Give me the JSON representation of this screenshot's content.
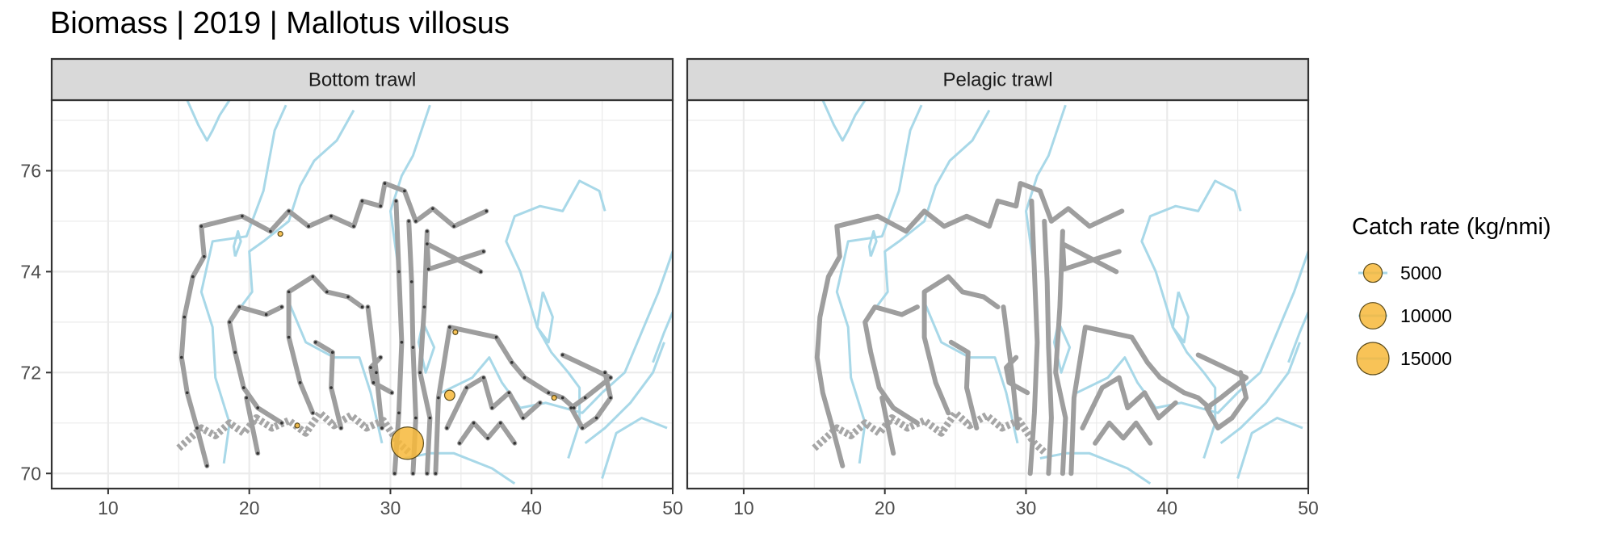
{
  "title": "Biomass | 2019 | Mallotus villosus",
  "chart_data": {
    "type": "scatter",
    "xlim": [
      6,
      50
    ],
    "ylim": [
      69.7,
      77.4
    ],
    "x_ticks": [
      10,
      20,
      30,
      40,
      50
    ],
    "y_ticks": [
      70,
      72,
      74,
      76
    ],
    "x_tick_labels": [
      "10",
      "20",
      "30",
      "40",
      "50"
    ],
    "y_tick_labels": [
      "70",
      "72",
      "74",
      "76"
    ],
    "grid": true,
    "legend_position": "right",
    "colors": {
      "point_fill": "#f7b83a",
      "point_edge": "#5a4a1a",
      "track": "#9e9e9e",
      "depth_contour": "#a8d8e8",
      "strip_bg": "#d9d9d9",
      "grid": "#ebebeb"
    },
    "panels": [
      {
        "name": "Bottom trawl",
        "points": [
          {
            "x": 31.2,
            "y": 70.6,
            "value": 15000
          },
          {
            "x": 34.2,
            "y": 71.55,
            "value": 1500
          },
          {
            "x": 41.6,
            "y": 71.5,
            "value": 300
          },
          {
            "x": 23.4,
            "y": 70.95,
            "value": 200
          },
          {
            "x": 22.2,
            "y": 74.75,
            "value": 60
          },
          {
            "x": 34.6,
            "y": 72.8,
            "value": 40
          }
        ]
      },
      {
        "name": "Pelagic trawl",
        "points": []
      }
    ],
    "legend": {
      "title": "Catch rate (kg/nmi)",
      "entries": [
        {
          "label": "5000",
          "value": 5000
        },
        {
          "label": "10000",
          "value": 10000
        },
        {
          "label": "15000",
          "value": 15000
        }
      ]
    },
    "survey_track": [
      [
        [
          17.0,
          70.15
        ],
        [
          16.3,
          70.9
        ],
        [
          15.6,
          71.6
        ],
        [
          15.2,
          72.3
        ],
        [
          15.4,
          73.1
        ],
        [
          16.0,
          73.9
        ],
        [
          16.8,
          74.3
        ],
        [
          16.6,
          74.9
        ],
        [
          19.5,
          75.1
        ],
        [
          21.5,
          74.8
        ],
        [
          22.8,
          75.2
        ],
        [
          24.2,
          74.9
        ],
        [
          25.8,
          75.1
        ],
        [
          27.4,
          74.9
        ],
        [
          28.0,
          75.4
        ],
        [
          29.3,
          75.3
        ],
        [
          29.6,
          75.75
        ],
        [
          31.0,
          75.6
        ],
        [
          31.8,
          75.0
        ],
        [
          33.0,
          75.25
        ],
        [
          34.5,
          74.9
        ],
        [
          36.8,
          75.2
        ]
      ],
      [
        [
          36.4,
          74.0
        ],
        [
          32.6,
          74.55
        ],
        [
          32.7,
          74.05
        ],
        [
          36.6,
          74.4
        ]
      ],
      [
        [
          22.3,
          71.0
        ],
        [
          20.6,
          71.3
        ],
        [
          19.6,
          71.7
        ],
        [
          19.0,
          72.4
        ],
        [
          18.6,
          73.0
        ],
        [
          19.3,
          73.3
        ],
        [
          21.2,
          73.15
        ],
        [
          22.3,
          73.3
        ]
      ],
      [
        [
          20.6,
          70.4
        ],
        [
          19.8,
          71.5
        ]
      ],
      [
        [
          24.5,
          71.2
        ],
        [
          23.6,
          71.8
        ],
        [
          22.8,
          72.7
        ],
        [
          22.8,
          73.6
        ],
        [
          24.5,
          73.9
        ],
        [
          25.5,
          73.6
        ],
        [
          27.0,
          73.5
        ],
        [
          28.0,
          73.3
        ]
      ],
      [
        [
          26.5,
          70.9
        ],
        [
          25.8,
          71.7
        ],
        [
          25.9,
          72.4
        ],
        [
          24.7,
          72.6
        ]
      ],
      [
        [
          29.4,
          70.9
        ],
        [
          29.0,
          72.0
        ],
        [
          28.4,
          73.3
        ]
      ],
      [
        [
          30.4,
          75.4
        ],
        [
          30.6,
          74.0
        ],
        [
          30.8,
          72.6
        ],
        [
          30.6,
          71.2
        ],
        [
          30.3,
          70.0
        ]
      ],
      [
        [
          31.3,
          75.0
        ],
        [
          31.5,
          73.8
        ],
        [
          31.6,
          72.5
        ],
        [
          31.8,
          71.1
        ],
        [
          31.6,
          70.0
        ]
      ],
      [
        [
          32.6,
          74.8
        ],
        [
          32.4,
          73.3
        ],
        [
          32.1,
          72.0
        ],
        [
          32.8,
          71.1
        ],
        [
          32.6,
          70.0
        ]
      ],
      [
        [
          33.2,
          70.0
        ],
        [
          33.4,
          71.5
        ],
        [
          34.2,
          72.9
        ],
        [
          37.5,
          72.7
        ],
        [
          38.6,
          72.2
        ],
        [
          39.5,
          71.9
        ],
        [
          41.2,
          71.6
        ],
        [
          42.2,
          71.5
        ],
        [
          43.0,
          71.3
        ]
      ],
      [
        [
          34.0,
          70.9
        ],
        [
          35.4,
          71.7
        ],
        [
          36.6,
          71.9
        ],
        [
          37.2,
          71.3
        ],
        [
          38.4,
          71.6
        ],
        [
          39.4,
          71.1
        ],
        [
          40.6,
          71.4
        ]
      ],
      [
        [
          30.1,
          71.6
        ],
        [
          28.8,
          71.8
        ],
        [
          28.6,
          72.1
        ],
        [
          29.3,
          72.3
        ]
      ],
      [
        [
          34.9,
          70.6
        ],
        [
          35.9,
          71.0
        ],
        [
          36.9,
          70.7
        ],
        [
          37.8,
          71.0
        ],
        [
          38.8,
          70.6
        ]
      ],
      [
        [
          42.2,
          72.35
        ],
        [
          45.6,
          71.9
        ],
        [
          43.8,
          71.5
        ],
        [
          42.8,
          71.3
        ],
        [
          43.6,
          70.9
        ],
        [
          44.6,
          71.1
        ],
        [
          45.6,
          71.5
        ],
        [
          45.2,
          72.0
        ]
      ]
    ],
    "coastline": [
      [
        [
          15.0,
          70.5
        ],
        [
          16.6,
          70.9
        ],
        [
          17.6,
          70.75
        ],
        [
          18.6,
          71.0
        ],
        [
          19.6,
          70.8
        ],
        [
          20.5,
          71.1
        ],
        [
          21.6,
          70.9
        ],
        [
          22.8,
          71.05
        ],
        [
          24.0,
          70.8
        ],
        [
          25.0,
          71.2
        ],
        [
          26.0,
          70.95
        ],
        [
          27.2,
          71.15
        ],
        [
          28.3,
          70.9
        ],
        [
          29.5,
          71.05
        ],
        [
          30.6,
          70.6
        ],
        [
          31.4,
          70.4
        ]
      ]
    ],
    "depth_contours": [
      [
        [
          18.2,
          70.2
        ],
        [
          18.6,
          71.0
        ],
        [
          17.6,
          71.9
        ],
        [
          17.4,
          72.9
        ],
        [
          16.6,
          73.6
        ],
        [
          17.4,
          74.6
        ],
        [
          19.8,
          74.7
        ],
        [
          21.0,
          75.6
        ],
        [
          21.8,
          76.8
        ],
        [
          22.6,
          77.3
        ]
      ],
      [
        [
          19.4,
          73.3
        ],
        [
          20.2,
          73.6
        ],
        [
          20.0,
          74.4
        ],
        [
          21.0,
          74.6
        ],
        [
          22.8,
          75.0
        ],
        [
          23.6,
          75.7
        ],
        [
          24.6,
          76.2
        ],
        [
          26.2,
          76.6
        ],
        [
          27.4,
          77.2
        ]
      ],
      [
        [
          29.4,
          70.6
        ],
        [
          28.6,
          71.6
        ],
        [
          27.8,
          72.3
        ],
        [
          26.0,
          72.3
        ],
        [
          24.0,
          72.6
        ],
        [
          22.8,
          73.4
        ]
      ],
      [
        [
          30.6,
          74.0
        ],
        [
          30.0,
          75.2
        ],
        [
          30.8,
          75.9
        ],
        [
          31.6,
          76.3
        ],
        [
          32.8,
          77.3
        ]
      ],
      [
        [
          32.3,
          73.0
        ],
        [
          33.1,
          72.5
        ],
        [
          32.5,
          72.0
        ],
        [
          32.0,
          72.6
        ],
        [
          32.3,
          73.0
        ]
      ],
      [
        [
          33.6,
          71.6
        ],
        [
          35.8,
          71.9
        ],
        [
          37.0,
          72.3
        ],
        [
          37.9,
          71.8
        ],
        [
          39.2,
          71.3
        ],
        [
          41.0,
          71.4
        ],
        [
          43.6,
          71.2
        ],
        [
          45.0,
          71.6
        ],
        [
          46.6,
          72.0
        ],
        [
          47.8,
          72.8
        ],
        [
          49.0,
          73.6
        ],
        [
          50.0,
          74.4
        ]
      ],
      [
        [
          31.0,
          70.3
        ],
        [
          32.8,
          70.4
        ],
        [
          34.5,
          70.4
        ],
        [
          37.2,
          70.1
        ],
        [
          38.8,
          69.8
        ]
      ],
      [
        [
          42.6,
          70.3
        ],
        [
          43.4,
          71.0
        ],
        [
          43.4,
          71.7
        ],
        [
          42.6,
          72.0
        ],
        [
          41.4,
          72.4
        ],
        [
          40.4,
          72.9
        ],
        [
          39.2,
          74.0
        ],
        [
          38.2,
          74.6
        ],
        [
          38.8,
          75.1
        ],
        [
          40.6,
          75.3
        ],
        [
          42.2,
          75.2
        ],
        [
          43.4,
          75.8
        ],
        [
          44.8,
          75.6
        ],
        [
          45.2,
          75.2
        ]
      ],
      [
        [
          43.8,
          70.6
        ],
        [
          45.2,
          70.9
        ],
        [
          47.0,
          71.4
        ],
        [
          48.6,
          72.0
        ],
        [
          49.4,
          72.6
        ]
      ],
      [
        [
          40.8,
          73.6
        ],
        [
          40.4,
          72.9
        ],
        [
          41.2,
          72.6
        ],
        [
          41.5,
          73.1
        ],
        [
          40.8,
          73.6
        ]
      ],
      [
        [
          45.0,
          69.9
        ],
        [
          46.0,
          70.8
        ],
        [
          47.8,
          71.1
        ],
        [
          49.6,
          70.9
        ]
      ],
      [
        [
          48.6,
          72.2
        ],
        [
          49.4,
          72.8
        ],
        [
          50.0,
          73.2
        ]
      ]
    ],
    "islands": [
      [
        [
          15.6,
          77.4
        ],
        [
          16.4,
          76.9
        ],
        [
          17.0,
          76.6
        ],
        [
          17.4,
          76.8
        ],
        [
          17.9,
          77.1
        ],
        [
          18.6,
          77.4
        ]
      ],
      [
        [
          19.0,
          74.3
        ],
        [
          19.4,
          74.6
        ],
        [
          19.2,
          74.8
        ],
        [
          18.9,
          74.5
        ],
        [
          19.0,
          74.3
        ]
      ]
    ]
  }
}
